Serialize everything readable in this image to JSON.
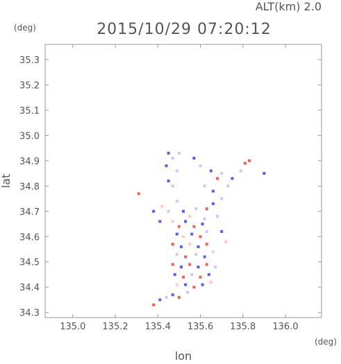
{
  "header": {
    "altitude_label": "ALT(km) 2.0",
    "timestamp": "2015/10/29 07:20:12",
    "y_unit": "(deg)",
    "x_unit": "(deg)"
  },
  "colors": {
    "frame": "#9a9a9a",
    "positive": "#ff5a5a",
    "negative": "#5a5aff",
    "weak_pos": "#ffc8c8",
    "weak_neg": "#c8c8ff"
  },
  "chart_data": {
    "type": "heatmap",
    "title": "2015/10/29 07:20:12",
    "subtitle": "ALT(km) 2.0",
    "xlabel": "lon",
    "ylabel": "lat",
    "xlim": [
      134.87,
      136.17
    ],
    "ylim": [
      34.28,
      35.36
    ],
    "x_ticks": [
      135.0,
      135.2,
      135.4,
      135.6,
      135.8,
      136.0
    ],
    "x_tick_labels": [
      "135.0",
      "135.2",
      "135.4",
      "135.6",
      "135.8",
      "136.0"
    ],
    "y_ticks": [
      34.3,
      34.4,
      34.5,
      34.6,
      34.7,
      34.8,
      34.9,
      35.0,
      35.1,
      35.2,
      35.3
    ],
    "y_tick_labels": [
      "34.3",
      "34.4",
      "34.5",
      "34.6",
      "34.7",
      "34.8",
      "34.9",
      "35.0",
      "35.1",
      "35.2",
      "35.3"
    ],
    "grid": false,
    "cells": [
      {
        "lon": 135.45,
        "lat": 34.93,
        "v": -1
      },
      {
        "lon": 135.47,
        "lat": 34.91,
        "v": -0.5
      },
      {
        "lon": 135.5,
        "lat": 34.93,
        "v": -0.5
      },
      {
        "lon": 135.44,
        "lat": 34.88,
        "v": -1
      },
      {
        "lon": 135.49,
        "lat": 34.86,
        "v": -0.5
      },
      {
        "lon": 135.45,
        "lat": 34.82,
        "v": -1
      },
      {
        "lon": 135.47,
        "lat": 34.8,
        "v": -0.5
      },
      {
        "lon": 135.57,
        "lat": 34.91,
        "v": -1
      },
      {
        "lon": 135.6,
        "lat": 34.88,
        "v": -0.5
      },
      {
        "lon": 135.65,
        "lat": 34.86,
        "v": -1
      },
      {
        "lon": 135.68,
        "lat": 34.83,
        "v": 1
      },
      {
        "lon": 135.7,
        "lat": 34.85,
        "v": -0.5
      },
      {
        "lon": 135.62,
        "lat": 34.8,
        "v": -0.5
      },
      {
        "lon": 135.66,
        "lat": 34.78,
        "v": -1
      },
      {
        "lon": 135.73,
        "lat": 34.8,
        "v": -0.5
      },
      {
        "lon": 135.75,
        "lat": 34.83,
        "v": -1
      },
      {
        "lon": 135.81,
        "lat": 34.89,
        "v": 1
      },
      {
        "lon": 135.83,
        "lat": 34.9,
        "v": 1
      },
      {
        "lon": 135.79,
        "lat": 34.86,
        "v": -0.5
      },
      {
        "lon": 135.9,
        "lat": 34.85,
        "v": -1
      },
      {
        "lon": 135.31,
        "lat": 34.77,
        "v": 1
      },
      {
        "lon": 135.38,
        "lat": 34.7,
        "v": -1
      },
      {
        "lon": 135.41,
        "lat": 34.66,
        "v": -1
      },
      {
        "lon": 135.49,
        "lat": 34.74,
        "v": -0.5
      },
      {
        "lon": 135.52,
        "lat": 34.7,
        "v": -1
      },
      {
        "lon": 135.55,
        "lat": 34.68,
        "v": 0.5
      },
      {
        "lon": 135.58,
        "lat": 34.71,
        "v": -0.5
      },
      {
        "lon": 135.62,
        "lat": 34.67,
        "v": -0.5
      },
      {
        "lon": 135.66,
        "lat": 34.73,
        "v": -1
      },
      {
        "lon": 135.7,
        "lat": 34.75,
        "v": -0.5
      },
      {
        "lon": 135.47,
        "lat": 34.66,
        "v": 0.5
      },
      {
        "lon": 135.5,
        "lat": 34.64,
        "v": 1
      },
      {
        "lon": 135.53,
        "lat": 34.66,
        "v": -1
      },
      {
        "lon": 135.57,
        "lat": 34.64,
        "v": 1
      },
      {
        "lon": 135.61,
        "lat": 34.65,
        "v": -1
      },
      {
        "lon": 135.49,
        "lat": 34.61,
        "v": -1
      },
      {
        "lon": 135.52,
        "lat": 34.6,
        "v": 0.5
      },
      {
        "lon": 135.56,
        "lat": 34.61,
        "v": -1
      },
      {
        "lon": 135.6,
        "lat": 34.6,
        "v": 1
      },
      {
        "lon": 135.63,
        "lat": 34.62,
        "v": -0.5
      },
      {
        "lon": 135.47,
        "lat": 34.57,
        "v": 1
      },
      {
        "lon": 135.51,
        "lat": 34.56,
        "v": -1
      },
      {
        "lon": 135.55,
        "lat": 34.57,
        "v": 0.5
      },
      {
        "lon": 135.59,
        "lat": 34.56,
        "v": -1
      },
      {
        "lon": 135.63,
        "lat": 34.57,
        "v": 1
      },
      {
        "lon": 135.49,
        "lat": 34.53,
        "v": -0.5
      },
      {
        "lon": 135.53,
        "lat": 34.52,
        "v": 1
      },
      {
        "lon": 135.58,
        "lat": 34.53,
        "v": -0.5
      },
      {
        "lon": 135.62,
        "lat": 34.52,
        "v": -1
      },
      {
        "lon": 135.66,
        "lat": 34.54,
        "v": 0.5
      },
      {
        "lon": 135.47,
        "lat": 34.49,
        "v": 1
      },
      {
        "lon": 135.51,
        "lat": 34.48,
        "v": -1
      },
      {
        "lon": 135.55,
        "lat": 34.49,
        "v": 1
      },
      {
        "lon": 135.59,
        "lat": 34.48,
        "v": -1
      },
      {
        "lon": 135.63,
        "lat": 34.49,
        "v": 1
      },
      {
        "lon": 135.67,
        "lat": 34.48,
        "v": -0.5
      },
      {
        "lon": 135.48,
        "lat": 34.45,
        "v": -1
      },
      {
        "lon": 135.52,
        "lat": 34.44,
        "v": 1
      },
      {
        "lon": 135.56,
        "lat": 34.45,
        "v": -0.5
      },
      {
        "lon": 135.6,
        "lat": 34.44,
        "v": 1
      },
      {
        "lon": 135.64,
        "lat": 34.45,
        "v": -1
      },
      {
        "lon": 135.49,
        "lat": 34.41,
        "v": 0.5
      },
      {
        "lon": 135.53,
        "lat": 34.41,
        "v": -1
      },
      {
        "lon": 135.57,
        "lat": 34.4,
        "v": 1
      },
      {
        "lon": 135.61,
        "lat": 34.41,
        "v": -1
      },
      {
        "lon": 135.65,
        "lat": 34.42,
        "v": 0.5
      },
      {
        "lon": 135.47,
        "lat": 34.37,
        "v": -1
      },
      {
        "lon": 135.5,
        "lat": 34.36,
        "v": 1
      },
      {
        "lon": 135.44,
        "lat": 34.36,
        "v": -0.5
      },
      {
        "lon": 135.41,
        "lat": 34.35,
        "v": -1
      },
      {
        "lon": 135.38,
        "lat": 34.33,
        "v": 1
      },
      {
        "lon": 135.54,
        "lat": 34.38,
        "v": -0.5
      },
      {
        "lon": 135.42,
        "lat": 34.72,
        "v": 0.5
      },
      {
        "lon": 135.45,
        "lat": 34.7,
        "v": -0.5
      },
      {
        "lon": 135.63,
        "lat": 34.71,
        "v": 1
      },
      {
        "lon": 135.68,
        "lat": 34.68,
        "v": -0.5
      },
      {
        "lon": 135.7,
        "lat": 34.62,
        "v": -1
      },
      {
        "lon": 135.72,
        "lat": 34.58,
        "v": 0.5
      }
    ]
  }
}
